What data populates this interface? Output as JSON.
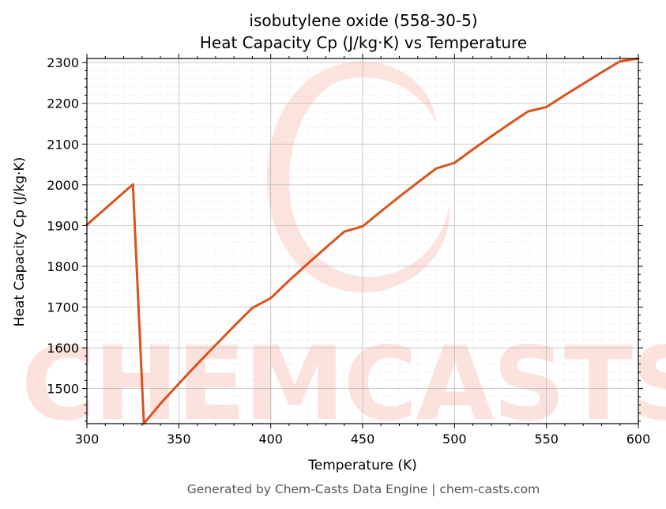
{
  "chart_data": {
    "type": "line",
    "title": [
      "isobutylene oxide (558-30-5)",
      "Heat Capacity Cp (J/kg·K) vs Temperature"
    ],
    "xlabel": "Temperature (K)",
    "ylabel": "Heat Capacity Cp (J/kg·K)",
    "xlim": [
      300,
      600
    ],
    "ylim": [
      1414,
      2310
    ],
    "xticks": [
      300,
      350,
      400,
      450,
      500,
      550,
      600
    ],
    "yticks": [
      1500,
      1600,
      1700,
      1800,
      1900,
      2000,
      2100,
      2200,
      2300
    ],
    "grid": true,
    "line_color": "#d9531e",
    "series": [
      {
        "x": [
          300,
          325,
          331,
          340,
          350,
          360,
          370,
          380,
          390,
          400,
          410,
          420,
          430,
          440,
          450,
          460,
          470,
          480,
          490,
          500,
          510,
          520,
          530,
          540,
          550,
          560,
          570,
          580,
          590,
          600
        ],
        "y": [
          1902,
          2001,
          1414,
          1463,
          1512,
          1560,
          1607,
          1653,
          1698,
          1722,
          1765,
          1806,
          1846,
          1885,
          1898,
          1935,
          1971,
          2006,
          2040,
          2054,
          2087,
          2119,
          2150,
          2180,
          2191,
          2220,
          2248,
          2276,
          2303,
          2310
        ]
      }
    ]
  },
  "footer": "Generated by Chem-Casts Data Engine | chem-casts.com",
  "watermark": "CHEMCASTS"
}
